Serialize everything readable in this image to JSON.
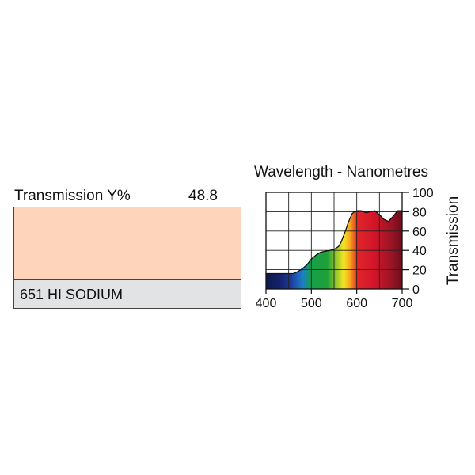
{
  "filter": {
    "transmission_label": "Transmission Y%",
    "transmission_value": "48.8",
    "name": "651 HI SODIUM",
    "swatch_color": "#fed5bb",
    "name_box_color": "#e2e3e5"
  },
  "chart_data": {
    "type": "area",
    "title": "Wavelength - Nanometres",
    "xlabel": "",
    "ylabel": "Transmission",
    "xlim": [
      400,
      700
    ],
    "ylim": [
      0,
      100
    ],
    "x_ticks": [
      400,
      500,
      600,
      700
    ],
    "y_ticks": [
      0,
      20,
      40,
      60,
      80,
      100
    ],
    "grid": true,
    "series": [
      {
        "x": [
          400,
          420,
          440,
          460,
          470,
          480,
          490,
          500,
          510,
          520,
          530,
          540,
          550,
          560,
          565,
          570,
          575,
          580,
          585,
          590,
          595,
          600,
          610,
          620,
          630,
          640,
          650,
          660,
          670,
          680,
          690,
          700
        ],
        "y": [
          16,
          16,
          16,
          16,
          18,
          21,
          25,
          31,
          35,
          38,
          39,
          40,
          41,
          44,
          48,
          54,
          60,
          67,
          73,
          78,
          80,
          81,
          81,
          79,
          80,
          81,
          77,
          72,
          70,
          75,
          81,
          81
        ]
      }
    ]
  }
}
